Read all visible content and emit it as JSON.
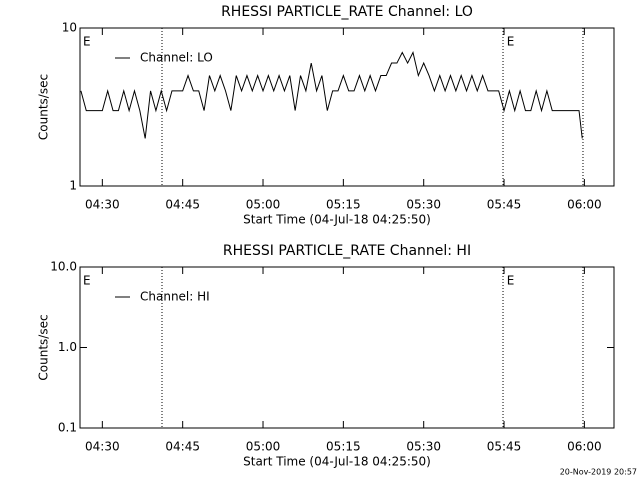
{
  "chart_data": [
    {
      "type": "line",
      "title": "RHESSI PARTICLE_RATE Channel: LO",
      "xlabel": "Start Time (04-Jul-18 04:25:50)",
      "ylabel": "Counts/sec",
      "log_y": true,
      "xlim": [
        265.83,
        365.53
      ],
      "ylim": [
        1,
        10
      ],
      "xticks": [
        {
          "value": 270,
          "label": "04:30"
        },
        {
          "value": 285,
          "label": "04:45"
        },
        {
          "value": 300,
          "label": "05:00"
        },
        {
          "value": 315,
          "label": "05:15"
        },
        {
          "value": 330,
          "label": "05:30"
        },
        {
          "value": 345,
          "label": "05:45"
        },
        {
          "value": 360,
          "label": "06:00"
        }
      ],
      "yticks": [
        1,
        10
      ],
      "vlines": [
        281.14,
        344.81,
        359.74
      ],
      "annotations": [
        {
          "text": "E",
          "x": 266.4
        },
        {
          "text": "E",
          "x": 345.5
        }
      ],
      "legend": "top-left",
      "series": [
        {
          "name": "Channel: LO",
          "color": "#000000",
          "x": [
            266,
            267,
            268,
            269,
            270,
            271,
            272,
            273,
            274,
            275,
            276,
            277,
            278,
            279,
            280,
            281,
            282,
            283,
            284,
            285,
            286,
            287,
            288,
            289,
            290,
            291,
            292,
            293,
            294,
            295,
            296,
            297,
            298,
            299,
            300,
            301,
            302,
            303,
            304,
            305,
            306,
            307,
            308,
            309,
            310,
            311,
            312,
            313,
            314,
            315,
            316,
            317,
            318,
            319,
            320,
            321,
            322,
            323,
            324,
            325,
            326,
            327,
            328,
            329,
            330,
            331,
            332,
            333,
            334,
            335,
            336,
            337,
            338,
            339,
            340,
            341,
            342,
            343,
            344,
            345,
            346,
            347,
            348,
            349,
            350,
            351,
            352,
            353,
            354,
            355,
            356,
            357,
            358,
            359,
            359.6
          ],
          "values": [
            4,
            3,
            3,
            3,
            3,
            4,
            3,
            3,
            4,
            3,
            4,
            3,
            2,
            4,
            3,
            4,
            3,
            4,
            4,
            4,
            5,
            4,
            4,
            3,
            5,
            4,
            5,
            4,
            3,
            5,
            4,
            5,
            4,
            5,
            4,
            5,
            4,
            5,
            4,
            5,
            3,
            5,
            4,
            6,
            4,
            5,
            3,
            4,
            4,
            5,
            4,
            4,
            5,
            4,
            5,
            4,
            5,
            5,
            6,
            6,
            7,
            6,
            7,
            5,
            6,
            5,
            4,
            5,
            4,
            5,
            4,
            5,
            4,
            5,
            4,
            5,
            4,
            4,
            4,
            3,
            4,
            3,
            4,
            3,
            3,
            4,
            3,
            4,
            3,
            3,
            3,
            3,
            3,
            3,
            2
          ]
        }
      ]
    },
    {
      "type": "line",
      "title": "RHESSI PARTICLE_RATE Channel: HI",
      "xlabel": "Start Time (04-Jul-18 04:25:50)",
      "ylabel": "Counts/sec",
      "log_y": true,
      "xlim": [
        265.83,
        365.53
      ],
      "ylim": [
        0.1,
        10
      ],
      "xticks": [
        {
          "value": 270,
          "label": "04:30"
        },
        {
          "value": 285,
          "label": "04:45"
        },
        {
          "value": 300,
          "label": "05:00"
        },
        {
          "value": 315,
          "label": "05:15"
        },
        {
          "value": 330,
          "label": "05:30"
        },
        {
          "value": 345,
          "label": "05:45"
        },
        {
          "value": 360,
          "label": "06:00"
        }
      ],
      "yticks": [
        0.1,
        {
          "value": 1,
          "label": "1.0"
        },
        {
          "value": 10,
          "label": "10.0"
        }
      ],
      "vlines": [
        281.14,
        344.81,
        359.74
      ],
      "annotations": [
        {
          "text": "E",
          "x": 266.4
        },
        {
          "text": "E",
          "x": 345.5
        }
      ],
      "legend": "top-left",
      "series": [
        {
          "name": "Channel: HI",
          "color": "#000000",
          "x": [],
          "values": []
        }
      ]
    }
  ],
  "footer": "20-Nov-2019 20:57"
}
